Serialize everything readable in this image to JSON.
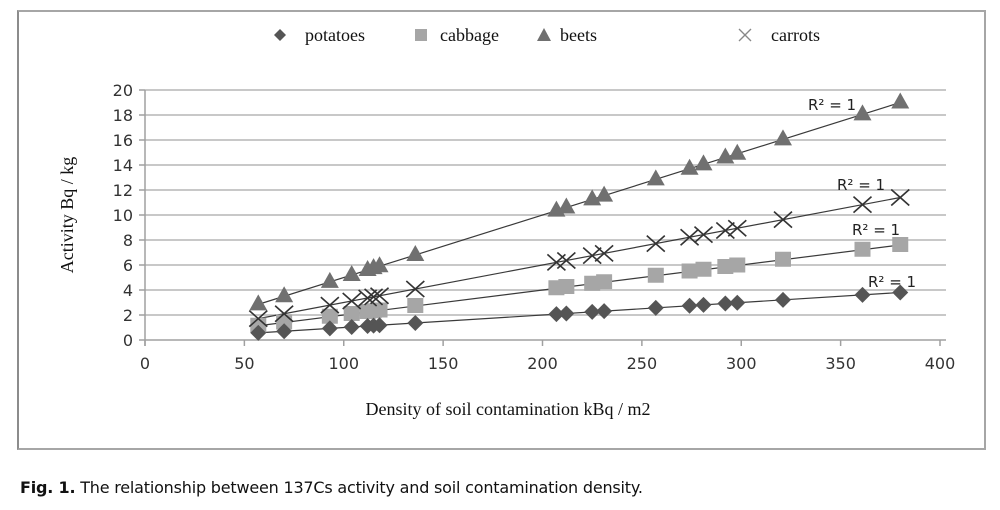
{
  "chart_data": {
    "type": "scatter",
    "title": "",
    "xlabel": "Density of soil contamination kBq / m2",
    "ylabel": "Activity Bq / kg",
    "xlim": [
      0,
      400
    ],
    "ylim": [
      0,
      20
    ],
    "xticks": [
      0,
      50,
      100,
      150,
      200,
      250,
      300,
      350,
      400
    ],
    "yticks": [
      0,
      2,
      4,
      6,
      8,
      10,
      12,
      14,
      16,
      18,
      20
    ],
    "grid": "horizontal",
    "legend_position": "top",
    "x": [
      57,
      70,
      93,
      104,
      112,
      115,
      118,
      136,
      207,
      212,
      225,
      231,
      257,
      274,
      281,
      292,
      298,
      321,
      361,
      380
    ],
    "series": [
      {
        "name": "potatoes",
        "marker": "diamond",
        "color": "#555555",
        "values": [
          0.57,
          0.7,
          0.93,
          1.04,
          1.12,
          1.15,
          1.18,
          1.36,
          2.07,
          2.12,
          2.25,
          2.31,
          2.57,
          2.74,
          2.81,
          2.92,
          2.98,
          3.21,
          3.61,
          3.8
        ],
        "trendline": "linear",
        "annotation": "R² = 1"
      },
      {
        "name": "cabbage",
        "marker": "square",
        "color": "#a6a6a6",
        "values": [
          1.14,
          1.4,
          1.86,
          2.08,
          2.24,
          2.3,
          2.36,
          2.72,
          4.14,
          4.24,
          4.5,
          4.62,
          5.14,
          5.48,
          5.62,
          5.84,
          5.96,
          6.42,
          7.22,
          7.6
        ],
        "trendline": "linear",
        "annotation": "R² = 1"
      },
      {
        "name": "beets",
        "marker": "triangle",
        "color": "#707070",
        "values": [
          2.85,
          3.5,
          4.65,
          5.2,
          5.6,
          5.75,
          5.9,
          6.8,
          10.35,
          10.6,
          11.25,
          11.55,
          12.85,
          13.7,
          14.05,
          14.6,
          14.9,
          16.05,
          18.05,
          19.0
        ],
        "trendline": "linear",
        "annotation": "R² = 1"
      },
      {
        "name": "carrots",
        "marker": "x",
        "color": "#333333",
        "values": [
          1.71,
          2.1,
          2.79,
          3.12,
          3.36,
          3.45,
          3.54,
          4.08,
          6.21,
          6.36,
          6.75,
          6.93,
          7.71,
          8.22,
          8.43,
          8.76,
          8.94,
          9.63,
          10.83,
          11.4
        ],
        "trendline": "linear",
        "annotation": "R² = 1"
      }
    ]
  },
  "caption": {
    "label": "Fig. 1.",
    "text": " The relationship between 137Cs activity and soil contamination density."
  }
}
